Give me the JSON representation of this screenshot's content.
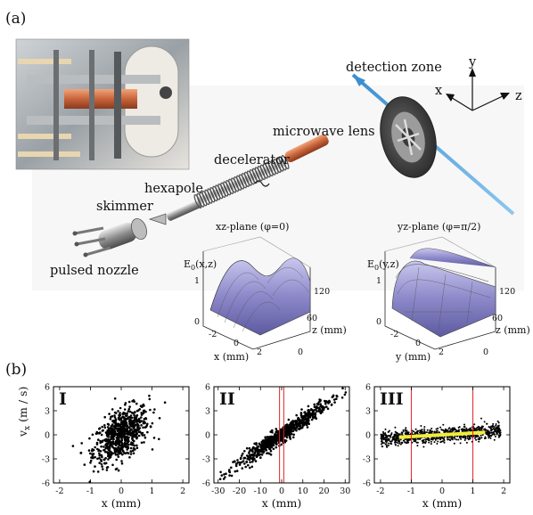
{
  "panel_a": {
    "tag": "(a)",
    "labels": {
      "detection_zone": "detection zone",
      "microwave_lens": "microwave lens",
      "decelerator": "decelerator",
      "hexapole": "hexapole",
      "skimmer": "skimmer",
      "pulsed_nozzle": "pulsed nozzle"
    },
    "axes_triad": {
      "x": "x",
      "y": "y",
      "z": "z"
    },
    "surface_left": {
      "title": "xz-plane (φ=0)",
      "zlabel_main": "E",
      "zlabel_sub": "0",
      "zlabel_args": "(x,z)",
      "zticks": [
        "1",
        "0"
      ],
      "xlabel": "x (mm)",
      "xticks": [
        "-2",
        "0",
        "2"
      ],
      "ylabel": "z (mm)",
      "yticks": [
        "120",
        "60",
        "0"
      ]
    },
    "surface_right": {
      "title": "yz-plane (φ=π/2)",
      "zlabel_main": "E",
      "zlabel_sub": "0",
      "zlabel_args": "(y,z)",
      "zticks": [
        "1",
        "0"
      ],
      "xlabel": "y (mm)",
      "xticks": [
        "-2",
        "0",
        "2"
      ],
      "ylabel": "z (mm)",
      "yticks": [
        "120",
        "60",
        "0"
      ]
    }
  },
  "panel_b": {
    "tag": "(b)",
    "ylabel_main": "v",
    "ylabel_sub": "x",
    "ylabel_unit": "(m / s)"
  },
  "chart_data": [
    {
      "type": "scatter",
      "roman": "I",
      "xlabel": "x (mm)",
      "ylabel": "vx (m / s)",
      "xlim": [
        -2.2,
        2.2
      ],
      "ylim": [
        -6,
        6
      ],
      "xticks": [
        -2,
        -1,
        0,
        1,
        2
      ],
      "yticks": [
        -6,
        -3,
        0,
        3,
        6
      ],
      "distribution": {
        "shape": "tilted ellipse",
        "center": [
          0,
          0
        ],
        "x_extent": [
          -1.3,
          1.3
        ],
        "v_extent": [
          -5,
          4.5
        ],
        "correlation": "positive"
      },
      "markers": [],
      "highlight": null
    },
    {
      "type": "scatter",
      "roman": "II",
      "xlabel": "x (mm)",
      "ylabel": "",
      "xlim": [
        -32,
        32
      ],
      "ylim": [
        -6,
        6
      ],
      "xticks": [
        -30,
        -20,
        -10,
        0,
        10,
        20,
        30
      ],
      "yticks": [
        -6,
        -3,
        0,
        3,
        6
      ],
      "distribution": {
        "shape": "narrow diagonal band",
        "center": [
          0,
          0
        ],
        "x_extent": [
          -28,
          31
        ],
        "v_extent": [
          -5,
          5.5
        ],
        "correlation": "positive"
      },
      "markers": [
        -1,
        1
      ],
      "highlight": null
    },
    {
      "type": "scatter",
      "roman": "III",
      "xlabel": "x (mm)",
      "ylabel": "",
      "xlim": [
        -2.2,
        2.2
      ],
      "ylim": [
        -6,
        6
      ],
      "xticks": [
        -2,
        -1,
        0,
        1,
        2
      ],
      "yticks": [
        -6,
        -3,
        0,
        3,
        6
      ],
      "distribution": {
        "shape": "flat horizontal band",
        "center": [
          0,
          0
        ],
        "x_extent": [
          -2,
          1.9
        ],
        "v_extent": [
          -1.6,
          1.6
        ],
        "correlation": "slight positive"
      },
      "markers": [
        -1,
        1
      ],
      "highlight": {
        "color": "#f1ec38",
        "x_range": [
          -1.4,
          1.4
        ],
        "v": 0
      }
    }
  ],
  "colors": {
    "marker_lines": "#e0242a",
    "beam": "#4f9fd8",
    "surface": "#8a86c8",
    "highlight": "#f1ec38"
  }
}
